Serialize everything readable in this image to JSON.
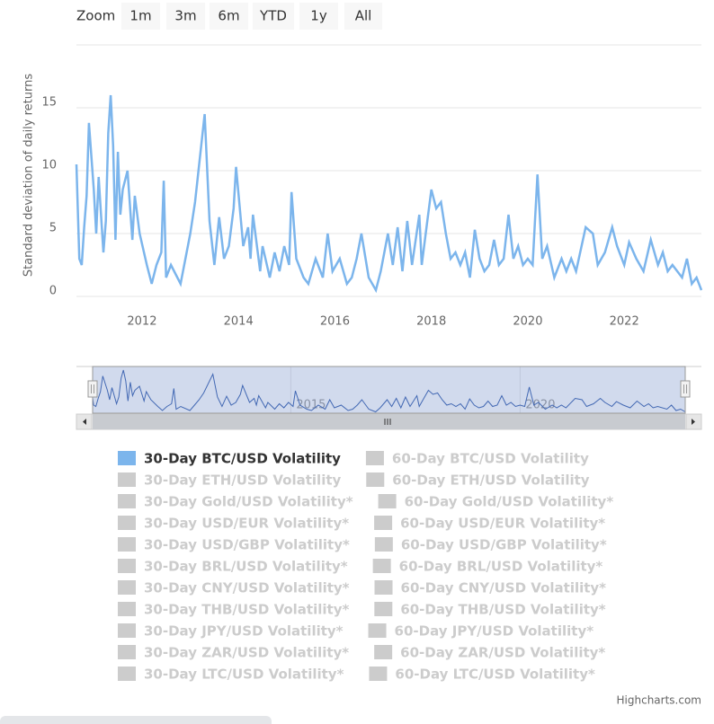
{
  "chart_data": {
    "type": "line",
    "zoom_label": "Zoom",
    "zoom_buttons": [
      "1m",
      "3m",
      "6m",
      "YTD",
      "1y",
      "All"
    ],
    "y_axis_label": "Standard deviation of daily returns",
    "x": [
      2010.64,
      2010.7,
      2010.75,
      2010.8,
      2010.85,
      2010.9,
      2011.0,
      2011.05,
      2011.1,
      2011.2,
      2011.25,
      2011.3,
      2011.35,
      2011.4,
      2011.45,
      2011.5,
      2011.55,
      2011.6,
      2011.7,
      2011.8,
      2011.85,
      2011.95,
      2012.1,
      2012.2,
      2012.3,
      2012.4,
      2012.45,
      2012.5,
      2012.6,
      2012.8,
      2012.9,
      2013.0,
      2013.1,
      2013.3,
      2013.4,
      2013.5,
      2013.6,
      2013.7,
      2013.8,
      2013.9,
      2013.95,
      2014.1,
      2014.2,
      2014.25,
      2014.3,
      2014.45,
      2014.5,
      2014.65,
      2014.75,
      2014.85,
      2014.95,
      2015.05,
      2015.1,
      2015.2,
      2015.35,
      2015.45,
      2015.6,
      2015.75,
      2015.85,
      2015.95,
      2016.1,
      2016.25,
      2016.35,
      2016.45,
      2016.55,
      2016.7,
      2016.85,
      2016.95,
      2017.1,
      2017.2,
      2017.3,
      2017.4,
      2017.5,
      2017.6,
      2017.75,
      2017.8,
      2017.9,
      2018.0,
      2018.1,
      2018.2,
      2018.3,
      2018.4,
      2018.5,
      2018.6,
      2018.7,
      2018.8,
      2018.9,
      2019.0,
      2019.1,
      2019.2,
      2019.3,
      2019.4,
      2019.5,
      2019.6,
      2019.7,
      2019.8,
      2019.9,
      2020.0,
      2020.1,
      2020.2,
      2020.3,
      2020.4,
      2020.55,
      2020.7,
      2020.8,
      2020.9,
      2021.0,
      2021.2,
      2021.35,
      2021.45,
      2021.6,
      2021.75,
      2021.85,
      2022.0,
      2022.1,
      2022.25,
      2022.4,
      2022.55,
      2022.7,
      2022.8,
      2022.9,
      2023.0,
      2023.2,
      2023.3,
      2023.4,
      2023.5,
      2023.6
    ],
    "series": [
      {
        "name": "30-Day BTC/USD Volatility",
        "color": "#7cb5ec",
        "visible": true,
        "values": [
          10.5,
          3,
          2.5,
          5.5,
          8,
          13.8,
          8.5,
          5,
          9.5,
          3.5,
          6,
          13,
          16,
          12,
          4.5,
          11.5,
          6.5,
          8.5,
          10,
          4.5,
          8,
          5,
          2.5,
          1,
          2.5,
          3.5,
          9.2,
          1.5,
          2.5,
          1,
          3,
          5,
          7.5,
          14.5,
          6,
          2.5,
          6.3,
          3,
          4,
          7,
          10.3,
          4,
          5.5,
          3,
          6.5,
          2,
          4,
          1.5,
          3.5,
          2,
          4,
          2.5,
          8.3,
          3,
          1.5,
          1,
          3,
          1.5,
          5,
          2,
          3,
          1,
          1.5,
          3,
          5,
          1.5,
          0.5,
          2,
          5,
          2.5,
          5.5,
          2,
          6,
          2.5,
          6.5,
          2.5,
          5.5,
          8.5,
          7,
          7.5,
          5,
          3,
          3.5,
          2.5,
          3.5,
          1.5,
          5.3,
          3,
          2,
          2.5,
          4.5,
          2.5,
          3,
          6.5,
          3,
          4,
          2.5,
          3,
          2.5,
          9.7,
          3,
          4,
          1.5,
          3,
          2,
          3,
          2,
          5.5,
          5,
          2.5,
          3.5,
          5.5,
          4,
          2.5,
          4.3,
          3,
          2,
          4.5,
          2.5,
          3.5,
          2,
          2.5,
          1.5,
          3,
          1,
          1.5,
          0.5
        ]
      },
      {
        "name": "60-Day BTC/USD Volatility",
        "color": "#cccccc",
        "visible": false
      },
      {
        "name": "30-Day ETH/USD Volatility",
        "color": "#cccccc",
        "visible": false
      },
      {
        "name": "60-Day ETH/USD Volatility",
        "color": "#cccccc",
        "visible": false
      },
      {
        "name": "30-Day Gold/USD Volatility*",
        "color": "#cccccc",
        "visible": false
      },
      {
        "name": "60-Day Gold/USD Volatility*",
        "color": "#cccccc",
        "visible": false
      },
      {
        "name": "30-Day USD/EUR Volatility*",
        "color": "#cccccc",
        "visible": false
      },
      {
        "name": "60-Day USD/EUR Volatility*",
        "color": "#cccccc",
        "visible": false
      },
      {
        "name": "30-Day USD/GBP Volatility*",
        "color": "#cccccc",
        "visible": false
      },
      {
        "name": "60-Day USD/GBP Volatility*",
        "color": "#cccccc",
        "visible": false
      },
      {
        "name": "30-Day BRL/USD Volatility*",
        "color": "#cccccc",
        "visible": false
      },
      {
        "name": "60-Day BRL/USD Volatility*",
        "color": "#cccccc",
        "visible": false
      },
      {
        "name": "30-Day CNY/USD Volatility*",
        "color": "#cccccc",
        "visible": false
      },
      {
        "name": "60-Day CNY/USD Volatility*",
        "color": "#cccccc",
        "visible": false
      },
      {
        "name": "30-Day THB/USD Volatility*",
        "color": "#cccccc",
        "visible": false
      },
      {
        "name": "60-Day THB/USD Volatility*",
        "color": "#cccccc",
        "visible": false
      },
      {
        "name": "30-Day JPY/USD Volatility*",
        "color": "#cccccc",
        "visible": false
      },
      {
        "name": "60-Day JPY/USD Volatility*",
        "color": "#cccccc",
        "visible": false
      },
      {
        "name": "30-Day ZAR/USD Volatility*",
        "color": "#cccccc",
        "visible": false
      },
      {
        "name": "60-Day ZAR/USD Volatility*",
        "color": "#cccccc",
        "visible": false
      },
      {
        "name": "30-Day LTC/USD Volatility*",
        "color": "#cccccc",
        "visible": false
      },
      {
        "name": "60-Day LTC/USD Volatility*",
        "color": "#cccccc",
        "visible": false
      }
    ],
    "xlim": [
      2010.64,
      2023.6
    ],
    "xticks": [
      2012,
      2014,
      2016,
      2018,
      2020,
      2022
    ],
    "ylim": [
      0,
      20
    ],
    "yticks": [
      0,
      5,
      10,
      15
    ],
    "grid": true,
    "navigator_xticks": [
      2015,
      2020
    ],
    "credits": "Highcharts.com"
  }
}
